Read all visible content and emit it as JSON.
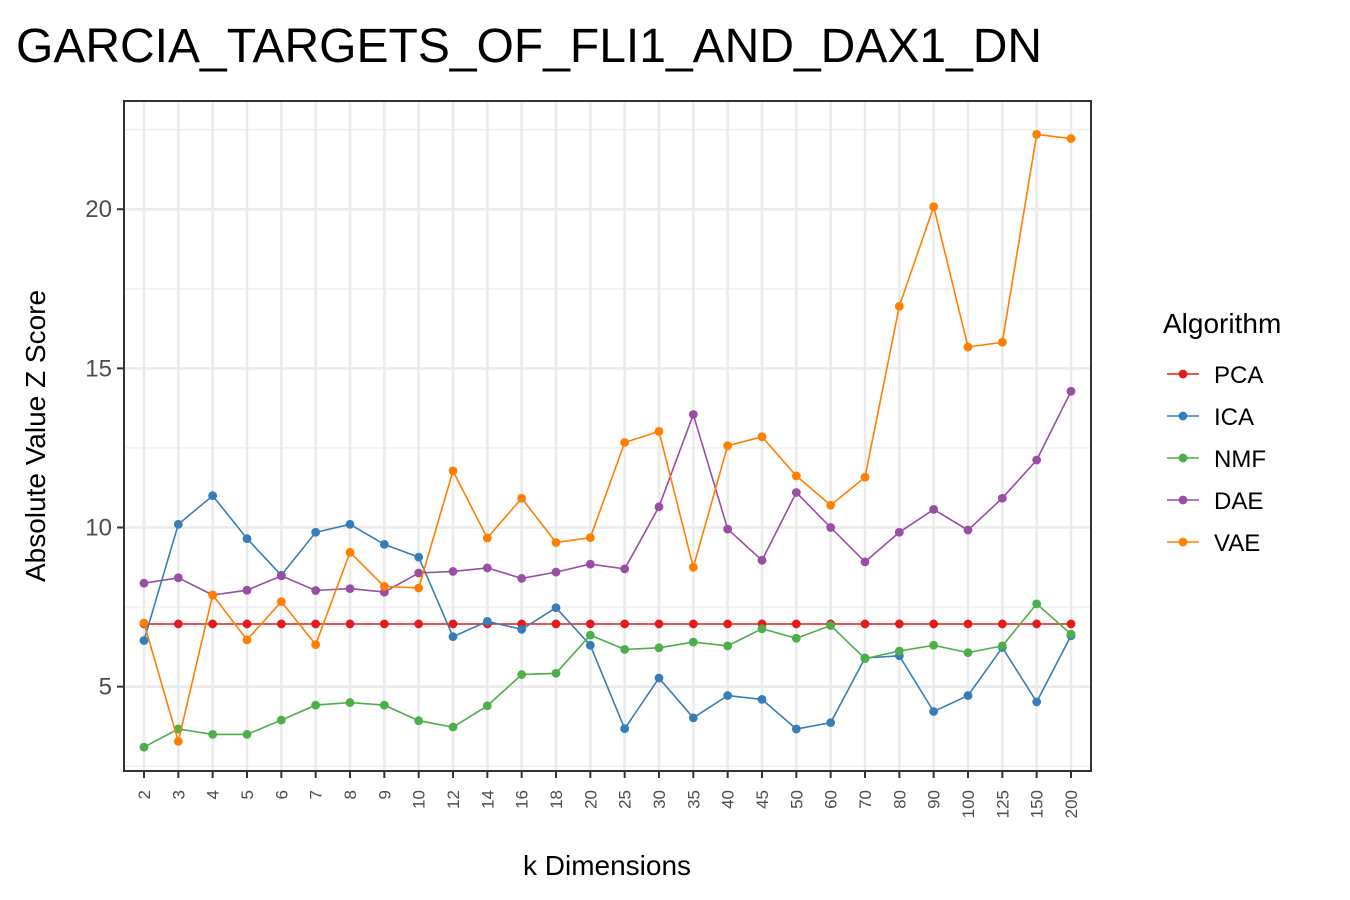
{
  "chart_data": {
    "type": "line",
    "title": "GARCIA_TARGETS_OF_FLI1_AND_DAX1_DN",
    "xlabel": "k Dimensions",
    "ylabel": "Absolute Value Z Score",
    "categories": [
      "2",
      "3",
      "4",
      "5",
      "6",
      "7",
      "8",
      "9",
      "10",
      "12",
      "14",
      "16",
      "18",
      "20",
      "25",
      "30",
      "35",
      "40",
      "45",
      "50",
      "60",
      "70",
      "80",
      "90",
      "100",
      "125",
      "150",
      "200"
    ],
    "ylim": [
      2.35,
      23.4
    ],
    "yticks": [
      5,
      10,
      15,
      20
    ],
    "grid": true,
    "legend": {
      "title": "Algorithm",
      "position": "right"
    },
    "series": [
      {
        "name": "PCA",
        "color": "#e41a1c",
        "values": [
          6.97,
          6.97,
          6.97,
          6.97,
          6.97,
          6.97,
          6.97,
          6.97,
          6.97,
          6.97,
          6.97,
          6.97,
          6.97,
          6.97,
          6.97,
          6.97,
          6.97,
          6.97,
          6.97,
          6.97,
          6.97,
          6.97,
          6.97,
          6.97,
          6.97,
          6.97,
          6.97,
          6.97
        ]
      },
      {
        "name": "ICA",
        "color": "#377eb8",
        "values": [
          6.45,
          10.1,
          11.0,
          9.65,
          8.5,
          9.85,
          10.1,
          9.47,
          9.07,
          6.57,
          7.05,
          6.8,
          7.48,
          6.3,
          3.68,
          5.27,
          4.02,
          4.72,
          4.6,
          3.67,
          3.87,
          5.9,
          5.97,
          4.22,
          4.72,
          6.23,
          4.52,
          6.6
        ]
      },
      {
        "name": "NMF",
        "color": "#4daf4a",
        "values": [
          3.1,
          3.67,
          3.5,
          3.5,
          3.95,
          4.42,
          4.5,
          4.42,
          3.93,
          3.73,
          4.4,
          5.38,
          5.42,
          6.62,
          6.17,
          6.22,
          6.4,
          6.28,
          6.82,
          6.52,
          6.92,
          5.88,
          6.12,
          6.3,
          6.07,
          6.28,
          7.6,
          6.65
        ]
      },
      {
        "name": "DAE",
        "color": "#984ea3",
        "values": [
          8.25,
          8.42,
          7.88,
          8.03,
          8.48,
          8.02,
          8.08,
          7.97,
          8.57,
          8.62,
          8.73,
          8.4,
          8.6,
          8.85,
          8.7,
          10.65,
          13.55,
          9.95,
          8.97,
          11.1,
          10.0,
          8.92,
          9.85,
          10.57,
          9.92,
          10.92,
          12.12,
          14.28
        ]
      },
      {
        "name": "VAE",
        "color": "#ff7f00",
        "values": [
          7.0,
          3.28,
          7.88,
          6.47,
          7.67,
          6.32,
          9.22,
          8.15,
          8.1,
          11.78,
          9.67,
          10.92,
          9.53,
          9.68,
          12.67,
          13.02,
          8.75,
          12.57,
          12.85,
          11.62,
          10.7,
          11.58,
          16.95,
          20.08,
          15.67,
          15.82,
          22.35,
          22.22
        ]
      }
    ]
  }
}
